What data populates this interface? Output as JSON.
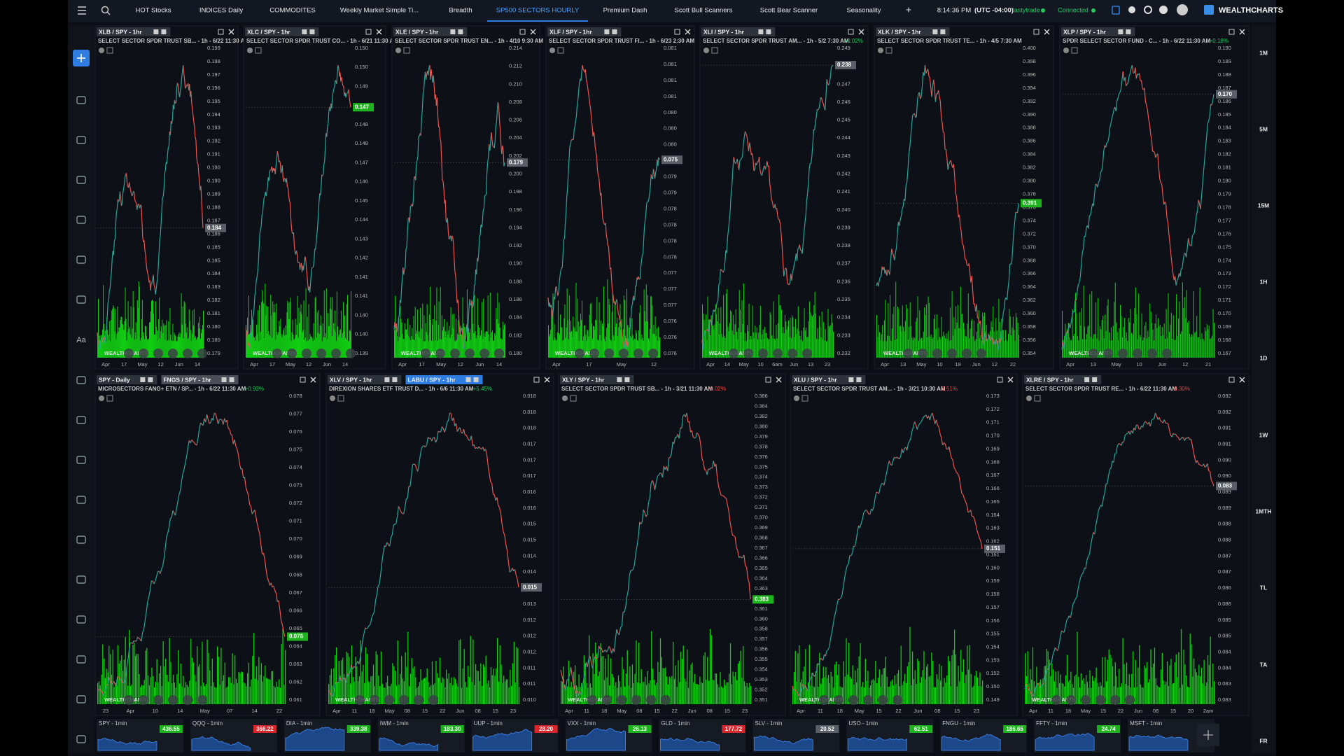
{
  "nav": {
    "tabs": [
      "HOT Stocks",
      "INDICES Daily",
      "COMMODITES",
      "Weekly Market Simple Ti...",
      "Breadth",
      "SP500 SECTORS HOURLY",
      "Premium Dash",
      "Scott Bull Scanners",
      "Scott Bear Scanner",
      "Seasonality",
      "+"
    ],
    "active_tab": 5,
    "time": "8:14:36 PM",
    "timezone": "(UTC -04:00)",
    "broker": "tastytrade",
    "status": "Connected",
    "brand": "WEALTHCHARTS"
  },
  "toolbar_text": "Aa",
  "watermark": "WEALTHCHARTS",
  "timeframes": [
    "1M",
    "5M",
    "15M",
    "1H",
    "1D",
    "1W",
    "1MTH",
    "TL",
    "TA",
    "FR"
  ],
  "top_panels": [
    {
      "tabs": [
        "XLB / SPY - 1hr"
      ],
      "subtitle": "SELECT SECTOR SPDR TRUST SB... - 1h - 6/22 11:30 AM",
      "last": "0.184",
      "last_color": "#5a5e66",
      "yticks": [
        "0.199",
        "0.198",
        "0.197",
        "0.196",
        "0.195",
        "0.194",
        "0.193",
        "0.192",
        "0.191",
        "0.190",
        "0.190",
        "0.189",
        "0.188",
        "0.187",
        "0.186",
        "0.185",
        "0.185",
        "0.184",
        "0.183",
        "0.182",
        "0.181",
        "0.180",
        "0.180",
        "0.179"
      ],
      "xticks": [
        "Apr",
        "17",
        "May",
        "12",
        "Jun",
        "14"
      ]
    },
    {
      "tabs": [
        "XLC / SPY - 1hr"
      ],
      "subtitle": "SELECT SECTOR SPDR TRUST CO... - 1h - 6/21 11:30 AM",
      "last": "0.147",
      "last_color": "#1db31d",
      "yticks": [
        "0.150",
        "0.150",
        "0.149",
        "0.149",
        "0.148",
        "0.148",
        "0.147",
        "0.146",
        "0.145",
        "0.144",
        "0.143",
        "0.142",
        "0.141",
        "0.141",
        "0.140",
        "0.140",
        "0.139"
      ],
      "xticks": [
        "Apr",
        "17",
        "May",
        "12",
        "Jun",
        "14"
      ]
    },
    {
      "tabs": [
        "XLE / SPY - 1hr"
      ],
      "subtitle": "SELECT SECTOR SPDR TRUST EN... - 1h - 4/10 9:30 AM",
      "last": "0.179",
      "last_color": "#5a5e66",
      "yticks": [
        "0.214",
        "0.212",
        "0.210",
        "0.208",
        "0.206",
        "0.204",
        "0.202",
        "0.200",
        "0.198",
        "0.196",
        "0.194",
        "0.192",
        "0.190",
        "0.188",
        "0.186",
        "0.184",
        "0.182",
        "0.180"
      ],
      "xticks": [
        "Apr",
        "17",
        "May",
        "12",
        "Jun",
        "14"
      ]
    },
    {
      "tabs": [
        "XLF / SPY - 1hr"
      ],
      "subtitle": "SELECT SECTOR SPDR TRUST FI... - 1h - 6/23 2:30 AM",
      "last": "0.075",
      "last_color": "#5a5e66",
      "yticks": [
        "0.081",
        "0.081",
        "0.081",
        "0.081",
        "0.080",
        "0.080",
        "0.080",
        "0.079",
        "0.079",
        "0.079",
        "0.078",
        "0.078",
        "0.078",
        "0.078",
        "0.077",
        "0.077",
        "0.077",
        "0.076",
        "0.076",
        "0.076"
      ],
      "xticks": [
        "Apr",
        "17",
        "May",
        "12"
      ]
    },
    {
      "tabs": [
        "XLI / SPY - 1hr"
      ],
      "subtitle": "SELECT SECTOR SPDR TRUST AM... - 1h - 5/2 7:30 AM",
      "change": "+0.02%",
      "change_color": "#22c55e",
      "last": "0.238",
      "last_color": "#5a5e66",
      "yticks": [
        "0.249",
        "0.248",
        "0.247",
        "0.246",
        "0.245",
        "0.244",
        "0.243",
        "0.242",
        "0.241",
        "0.240",
        "0.239",
        "0.238",
        "0.237",
        "0.236",
        "0.235",
        "0.234",
        "0.233",
        "0.232"
      ],
      "xticks": [
        "Apr",
        "14",
        "May",
        "10",
        "6am",
        "Jun",
        "13",
        "23"
      ]
    },
    {
      "tabs": [
        "XLK / SPY - 1hr"
      ],
      "subtitle": "SELECT SECTOR SPDR TRUST TE... - 1h - 4/5 7:30 AM",
      "last": "0.391",
      "last_color": "#1db31d",
      "yticks": [
        "0.400",
        "0.398",
        "0.396",
        "0.394",
        "0.392",
        "0.390",
        "0.388",
        "0.386",
        "0.384",
        "0.382",
        "0.380",
        "0.378",
        "0.376",
        "0.374",
        "0.372",
        "0.370",
        "0.368",
        "0.366",
        "0.364",
        "0.362",
        "0.360",
        "0.358",
        "0.356",
        "0.354"
      ],
      "xticks": [
        "Apr",
        "13",
        "May",
        "10",
        "19",
        "Jun",
        "12",
        "22"
      ]
    },
    {
      "tabs": [
        "XLP / SPY - 1hr"
      ],
      "subtitle": "SPDR SELECT SECTOR FUND - C... - 1h - 6/22 11:30 AM",
      "change": "+0.18%",
      "change_color": "#22c55e",
      "last": "0.170",
      "last_color": "#5a5e66",
      "yticks": [
        "0.190",
        "0.189",
        "0.188",
        "0.187",
        "0.186",
        "0.185",
        "0.184",
        "0.183",
        "0.182",
        "0.181",
        "0.180",
        "0.179",
        "0.178",
        "0.177",
        "0.176",
        "0.175",
        "0.174",
        "0.173",
        "0.172",
        "0.171",
        "0.170",
        "0.169",
        "0.168",
        "0.167"
      ],
      "xticks": [
        "Apr",
        "13",
        "May",
        "10",
        "Jun",
        "12",
        "21"
      ]
    }
  ],
  "bottom_panels": [
    {
      "tabs": [
        "SPY - Daily",
        "FNGS / SPY - 1hr"
      ],
      "highlight_tab": 1,
      "highlight_color": "#4a4e57",
      "subtitle": "MICROSECTORS FANG+ ETN / SP... - 1h - 6/22 11:30 AM",
      "change": "+0.93%",
      "change_color": "#22c55e",
      "last": "0.076",
      "last_color": "#1db31d",
      "yticks": [
        "0.078",
        "0.077",
        "0.076",
        "0.075",
        "0.074",
        "0.073",
        "0.072",
        "0.071",
        "0.070",
        "0.069",
        "0.068",
        "0.067",
        "0.066",
        "0.065",
        "0.064",
        "0.063",
        "0.062",
        "0.061"
      ],
      "xticks": [
        "23",
        "Apr",
        "10",
        "14",
        "May",
        "07",
        "14",
        "22"
      ]
    },
    {
      "tabs": [
        "XLV / SPY - 1hr",
        "LABU / SPY - 1hr"
      ],
      "highlight_tab": 1,
      "highlight_color": "#2f7de1",
      "subtitle": "DIREXION SHARES ETF TRUST D... - 1h - 6/6 11:30 AM",
      "change": "+5.45%",
      "change_color": "#22c55e",
      "last": "0.015",
      "last_color": "#5a5e66",
      "yticks": [
        "0.018",
        "0.018",
        "0.018",
        "0.017",
        "0.017",
        "0.017",
        "0.016",
        "0.016",
        "0.015",
        "0.015",
        "0.014",
        "0.014",
        "0.013",
        "0.013",
        "0.012",
        "0.012",
        "0.012",
        "0.011",
        "0.011",
        "0.010"
      ],
      "xticks": [
        "Apr",
        "11",
        "18",
        "May",
        "08",
        "15",
        "22",
        "Jun",
        "08",
        "15",
        "23"
      ]
    },
    {
      "tabs": [
        "XLY / SPY - 1hr"
      ],
      "subtitle": "SELECT SECTOR SPDR TRUST SB... - 1h - 3/21 11:30 AM",
      "change": "-0.02%",
      "change_color": "#ef4444",
      "last": "0.383",
      "last_color": "#1db31d",
      "yticks": [
        "0.386",
        "0.384",
        "0.382",
        "0.380",
        "0.379",
        "0.378",
        "0.376",
        "0.375",
        "0.374",
        "0.373",
        "0.372",
        "0.371",
        "0.370",
        "0.369",
        "0.368",
        "0.367",
        "0.366",
        "0.365",
        "0.364",
        "0.363",
        "0.362",
        "0.361",
        "0.360",
        "0.358",
        "0.357",
        "0.356",
        "0.355",
        "0.354",
        "0.353",
        "0.352",
        "0.351"
      ],
      "xticks": [
        "Apr",
        "11",
        "18",
        "May",
        "08",
        "15",
        "22",
        "Jun",
        "08",
        "15",
        "23"
      ]
    },
    {
      "tabs": [
        "XLU / SPY - 1hr"
      ],
      "subtitle": "SELECT SECTOR SPDR TRUST AM... - 1h - 3/21 10:30 AM",
      "change": "-3.51%",
      "change_color": "#ef4444",
      "last": "0.151",
      "last_color": "#5a5e66",
      "yticks": [
        "0.173",
        "0.172",
        "0.171",
        "0.170",
        "0.169",
        "0.168",
        "0.167",
        "0.166",
        "0.165",
        "0.164",
        "0.163",
        "0.162",
        "0.161",
        "0.160",
        "0.159",
        "0.158",
        "0.157",
        "0.156",
        "0.155",
        "0.154",
        "0.153",
        "0.152",
        "0.150",
        "0.149"
      ],
      "xticks": [
        "Apr",
        "11",
        "18",
        "May",
        "15",
        "22",
        "Jun",
        "08",
        "15",
        "23"
      ]
    },
    {
      "tabs": [
        "XLRE / SPY - 1hr"
      ],
      "subtitle": "SELECT SECTOR SPDR TRUST RE... - 1h - 6/22 11:30 AM",
      "change": "-0.30%",
      "change_color": "#ef4444",
      "last": "0.083",
      "last_color": "#5a5e66",
      "yticks": [
        "0.092",
        "0.092",
        "0.091",
        "0.091",
        "0.090",
        "0.090",
        "0.089",
        "0.089",
        "0.088",
        "0.088",
        "0.087",
        "0.087",
        "0.086",
        "0.086",
        "0.085",
        "0.085",
        "0.084",
        "0.084",
        "0.083",
        "0.083"
      ],
      "xticks": [
        "Apr",
        "11",
        "18",
        "May",
        "15",
        "22",
        "Jun",
        "08",
        "15",
        "20",
        "2am"
      ]
    }
  ],
  "tickers": [
    {
      "label": "SPY - 1min",
      "value": "436.55",
      "color": "#1db31d"
    },
    {
      "label": "QQQ - 1min",
      "value": "366.22",
      "color": "#d9262b"
    },
    {
      "label": "DIA - 1min",
      "value": "339.38",
      "color": "#1db31d"
    },
    {
      "label": "IWM - 1min",
      "value": "183.30",
      "color": "#1db31d"
    },
    {
      "label": "UUP - 1min",
      "value": "28.20",
      "color": "#d9262b"
    },
    {
      "label": "VXX - 1min",
      "value": "26.13",
      "color": "#1db31d"
    },
    {
      "label": "GLD - 1min",
      "value": "177.72",
      "color": "#d9262b"
    },
    {
      "label": "SLV - 1min",
      "value": "20.52",
      "color": "#5a5e66"
    },
    {
      "label": "USO - 1min",
      "value": "62.51",
      "color": "#1db31d"
    },
    {
      "label": "FNGU - 1min",
      "value": "186.65",
      "color": "#1db31d"
    },
    {
      "label": "FFTY - 1min",
      "value": "24.74",
      "color": "#1db31d"
    },
    {
      "label": "MSFT - 1min"
    }
  ]
}
